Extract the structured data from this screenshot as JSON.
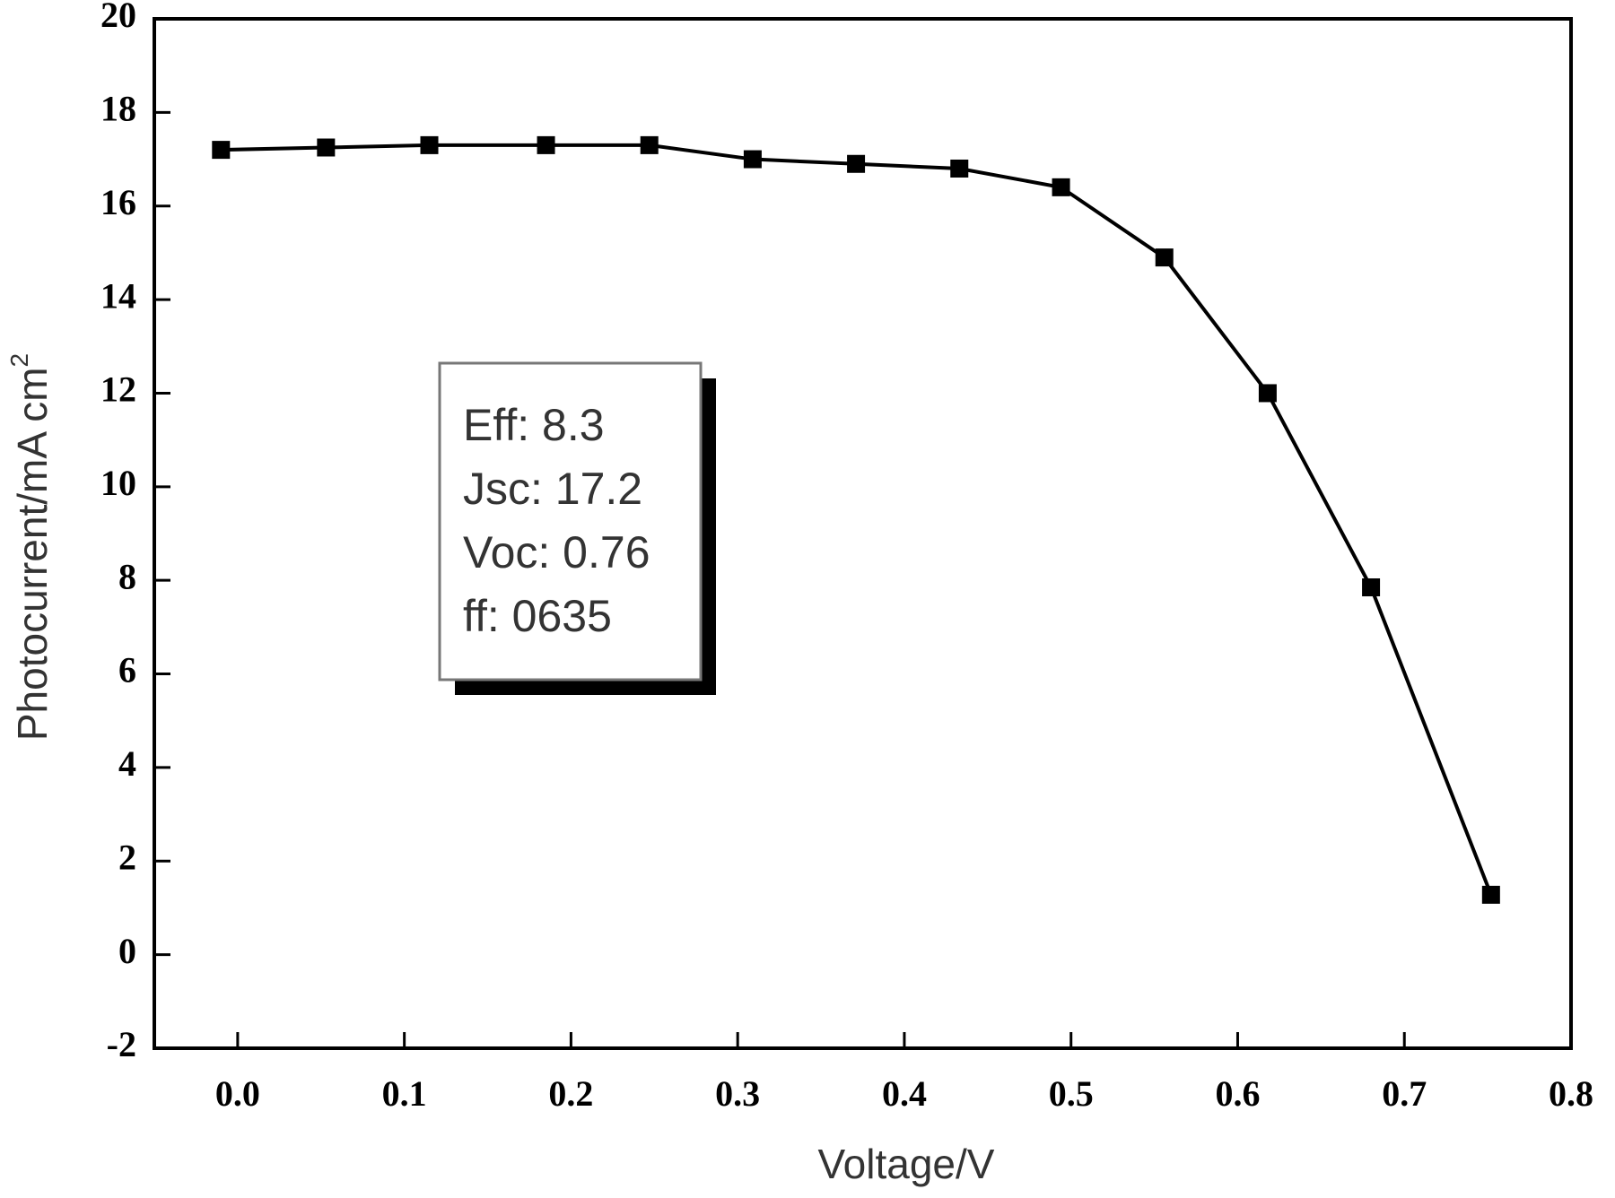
{
  "chart_data": {
    "type": "line",
    "xlabel": "Voltage/V",
    "ylabel": "Photocurrent/mA cm",
    "ylabel_superscript": "2",
    "x": [
      -0.01,
      0.053,
      0.115,
      0.185,
      0.247,
      0.309,
      0.371,
      0.433,
      0.494,
      0.556,
      0.618,
      0.68,
      0.752
    ],
    "series": [
      {
        "color": "#000000",
        "values": [
          17.2,
          17.25,
          17.3,
          17.3,
          17.3,
          17.0,
          16.9,
          16.8,
          16.4,
          14.9,
          12.0,
          7.85,
          1.28
        ]
      }
    ],
    "xlim": [
      -0.05,
      0.8
    ],
    "xticks": [
      {
        "value": 0,
        "label": "0.0"
      },
      0.1,
      0.2,
      0.3,
      0.4,
      0.5,
      0.6,
      0.7,
      0.8
    ],
    "ylim": [
      -2,
      20
    ],
    "yticks": [
      -2,
      0,
      2,
      4,
      6,
      8,
      10,
      12,
      14,
      16,
      18,
      20
    ],
    "annotation": [
      "Eff: 8.3",
      "Jsc: 17.2",
      "Voc: 0.76",
      "ff: 0635"
    ]
  }
}
